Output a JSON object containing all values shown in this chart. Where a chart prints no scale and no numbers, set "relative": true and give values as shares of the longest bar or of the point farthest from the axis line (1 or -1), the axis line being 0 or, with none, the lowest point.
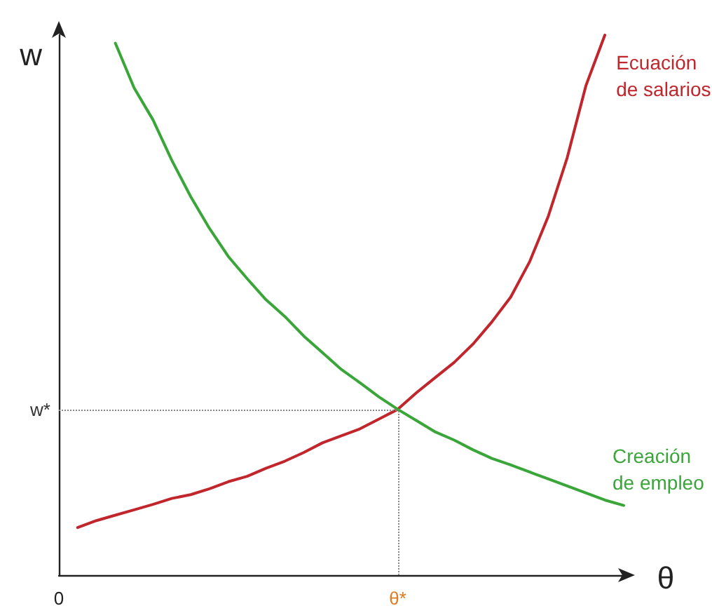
{
  "chart_data": {
    "type": "line",
    "relative": true,
    "xlabel": "θ",
    "ylabel": "w",
    "tick_labels": "x",
    "grid": false,
    "legend": false,
    "marker": "none",
    "line_style": "solid",
    "categories": [
      "0",
      null,
      null,
      null,
      null,
      null,
      null,
      null,
      null,
      null,
      null,
      null,
      null,
      null,
      null,
      null,
      null,
      null,
      "θ*",
      null,
      null,
      null,
      null,
      null,
      null,
      null,
      null,
      null,
      null,
      null,
      null
    ],
    "series": [
      {
        "name": "Ecuación\nde salarios",
        "color": "#c0262b",
        "values": [
          null,
          0.088,
          0.101,
          0.111,
          0.121,
          0.131,
          0.142,
          0.149,
          0.16,
          0.173,
          0.183,
          0.198,
          0.211,
          0.227,
          0.245,
          0.258,
          0.271,
          0.289,
          0.307,
          0.338,
          0.366,
          0.394,
          0.428,
          0.469,
          0.515,
          0.58,
          0.665,
          0.773,
          0.907,
          1,
          null
        ]
      },
      {
        "name": "Creación\nde empleo",
        "color": "#3aa63a",
        "values": [
          null,
          null,
          null,
          0.985,
          0.902,
          0.843,
          0.768,
          0.701,
          0.642,
          0.59,
          0.549,
          0.51,
          0.479,
          0.443,
          0.412,
          0.381,
          0.356,
          0.33,
          0.307,
          0.286,
          0.265,
          0.25,
          0.232,
          0.216,
          0.204,
          0.191,
          0.178,
          0.165,
          0.152,
          0.139,
          0.129
        ]
      }
    ],
    "ref_lines": [
      {
        "axis": "y",
        "value": 0.307,
        "label": "w*",
        "color": "#888888",
        "line_style": "dotted"
      },
      {
        "axis": "x",
        "value": "θ*",
        "color": "#888888",
        "line_style": "dotted"
      }
    ]
  }
}
